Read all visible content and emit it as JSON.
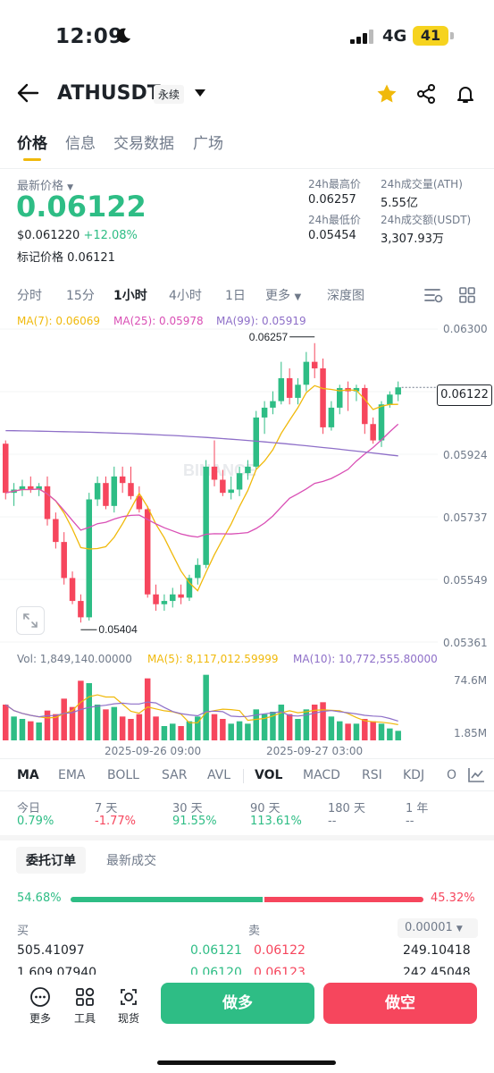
{
  "status": {
    "time": "12:09",
    "network": "4G",
    "battery": "41"
  },
  "header": {
    "title": "ATHUSDT",
    "badge": "永续"
  },
  "tabs": [
    "价格",
    "信息",
    "交易数据",
    "广场"
  ],
  "price": {
    "label": "最新价格",
    "value": "0.06122",
    "usd": "$0.061220",
    "change": "+12.08%",
    "mark_label": "标记价格",
    "mark_value": "0.06121",
    "high_label": "24h最高价",
    "high": "0.06257",
    "low_label": "24h最低价",
    "low": "0.05454",
    "vol_label": "24h成交量(ATH)",
    "vol": "5.55亿",
    "amt_label": "24h成交额(USDT)",
    "amt": "3,307.93万"
  },
  "timeframes": [
    "分时",
    "15分",
    "1小时",
    "4小时",
    "1日",
    "更多",
    "深度图"
  ],
  "ma_legend": {
    "ma7": "MA(7): 0.06069",
    "ma25": "MA(25): 0.05978",
    "ma99": "MA(99): 0.05919"
  },
  "colors": {
    "up": "#2ebd85",
    "down": "#f6465d",
    "ma7": "#f0b90b",
    "ma25": "#d94fb5",
    "ma99": "#8e6fc8",
    "accent": "#f0b90b"
  },
  "chart_data": {
    "type": "candlestick",
    "price_axis": [
      "0.06300",
      "0.06112",
      "0.05924",
      "0.05737",
      "0.05549",
      "0.05361"
    ],
    "current_price": "0.06122",
    "high_marker": "0.06257",
    "low_marker": "0.05404",
    "time_labels": [
      "2025-09-26 09:00",
      "2025-09-27 03:00"
    ],
    "watermark": "BINANCE",
    "volume_legend": {
      "vol": "Vol: 1,849,140.00000",
      "ma5": "MA(5): 8,117,012.59999",
      "ma10": "MA(10): 10,772,555.80000"
    },
    "volume_axis": [
      "74.6M",
      "1.85M"
    ],
    "candles": [
      [
        0.0595,
        0.0596,
        0.0578,
        0.058
      ],
      [
        0.058,
        0.0583,
        0.0576,
        0.0581
      ],
      [
        0.0581,
        0.0584,
        0.0579,
        0.0582
      ],
      [
        0.0582,
        0.0585,
        0.058,
        0.0581
      ],
      [
        0.0581,
        0.0583,
        0.0579,
        0.0582
      ],
      [
        0.0582,
        0.0585,
        0.057,
        0.0572
      ],
      [
        0.0572,
        0.0574,
        0.0563,
        0.0565
      ],
      [
        0.0565,
        0.0568,
        0.0552,
        0.0554
      ],
      [
        0.0554,
        0.0556,
        0.0546,
        0.0547
      ],
      [
        0.0547,
        0.0549,
        0.05404,
        0.0542
      ],
      [
        0.0542,
        0.058,
        0.0541,
        0.0578
      ],
      [
        0.0578,
        0.0585,
        0.0576,
        0.0583
      ],
      [
        0.0583,
        0.0585,
        0.0575,
        0.0576
      ],
      [
        0.0576,
        0.0588,
        0.0574,
        0.0585
      ],
      [
        0.0585,
        0.0588,
        0.058,
        0.0583
      ],
      [
        0.0583,
        0.0588,
        0.0578,
        0.0579
      ],
      [
        0.0579,
        0.0582,
        0.0574,
        0.0575
      ],
      [
        0.0575,
        0.0576,
        0.0548,
        0.0549
      ],
      [
        0.0549,
        0.0552,
        0.0544,
        0.0546
      ],
      [
        0.0546,
        0.0549,
        0.0544,
        0.0547
      ],
      [
        0.0547,
        0.0551,
        0.0545,
        0.0549
      ],
      [
        0.0549,
        0.0552,
        0.0546,
        0.0548
      ],
      [
        0.0548,
        0.0555,
        0.0547,
        0.0554
      ],
      [
        0.0554,
        0.056,
        0.0552,
        0.0558
      ],
      [
        0.0558,
        0.059,
        0.0557,
        0.0588
      ],
      [
        0.0588,
        0.0596,
        0.0582,
        0.0584
      ],
      [
        0.0584,
        0.0587,
        0.0579,
        0.058
      ],
      [
        0.058,
        0.0585,
        0.0578,
        0.0581
      ],
      [
        0.0581,
        0.0588,
        0.0579,
        0.0586
      ],
      [
        0.0586,
        0.059,
        0.0584,
        0.0588
      ],
      [
        0.0588,
        0.0605,
        0.0587,
        0.0603
      ],
      [
        0.0603,
        0.0608,
        0.0598,
        0.0606
      ],
      [
        0.0606,
        0.0611,
        0.0604,
        0.0608
      ],
      [
        0.0608,
        0.062,
        0.0607,
        0.0615
      ],
      [
        0.0615,
        0.0618,
        0.0607,
        0.0609
      ],
      [
        0.0609,
        0.0615,
        0.0607,
        0.0613
      ],
      [
        0.0613,
        0.0623,
        0.0611,
        0.062
      ],
      [
        0.062,
        0.06257,
        0.0615,
        0.0618
      ],
      [
        0.0618,
        0.0621,
        0.0598,
        0.06
      ],
      [
        0.06,
        0.0608,
        0.0599,
        0.0606
      ],
      [
        0.0606,
        0.0613,
        0.0604,
        0.0612
      ],
      [
        0.0612,
        0.0614,
        0.0605,
        0.0611
      ],
      [
        0.0611,
        0.0613,
        0.0608,
        0.0612
      ],
      [
        0.0612,
        0.0613,
        0.0598,
        0.0601
      ],
      [
        0.0601,
        0.0603,
        0.0595,
        0.0596
      ],
      [
        0.0596,
        0.0608,
        0.0594,
        0.0607
      ],
      [
        0.0607,
        0.0611,
        0.0606,
        0.061
      ],
      [
        0.061,
        0.0614,
        0.0608,
        0.06122
      ]
    ],
    "volumes": [
      30,
      20,
      18,
      16,
      15,
      25,
      22,
      35,
      28,
      50,
      48,
      30,
      26,
      28,
      20,
      18,
      22,
      52,
      20,
      12,
      14,
      12,
      16,
      20,
      55,
      22,
      18,
      14,
      16,
      14,
      26,
      22,
      24,
      30,
      22,
      18,
      26,
      30,
      32,
      20,
      16,
      14,
      14,
      18,
      16,
      14,
      10,
      8
    ]
  },
  "indicators": [
    "MA",
    "EMA",
    "BOLL",
    "SAR",
    "AVL",
    "VOL",
    "MACD",
    "RSI",
    "KDJ",
    "O"
  ],
  "performance": [
    {
      "label": "今日",
      "value": "0.79%"
    },
    {
      "label": "7 天",
      "value": "-1.77%"
    },
    {
      "label": "30 天",
      "value": "91.55%"
    },
    {
      "label": "90 天",
      "value": "113.61%"
    },
    {
      "label": "180 天",
      "value": "--"
    },
    {
      "label": "1 年",
      "value": "--"
    }
  ],
  "orderbook": {
    "tab_active": "委托订单",
    "tab_other": "最新成交",
    "buy_pct": "54.68%",
    "sell_pct": "45.32%",
    "buy_ratio": 0.5468,
    "buy_label": "买",
    "sell_label": "卖",
    "precision": "0.00001",
    "rows": [
      {
        "bid_qty": "505.41097",
        "bid": "0.06121",
        "ask": "0.06122",
        "ask_qty": "249.10418"
      },
      {
        "bid_qty": "1,609.07940",
        "bid": "0.06120",
        "ask": "0.06123",
        "ask_qty": "242.45048"
      }
    ]
  },
  "bottom": {
    "more": "更多",
    "tools": "工具",
    "spot": "现货",
    "long": "做多",
    "short": "做空"
  }
}
